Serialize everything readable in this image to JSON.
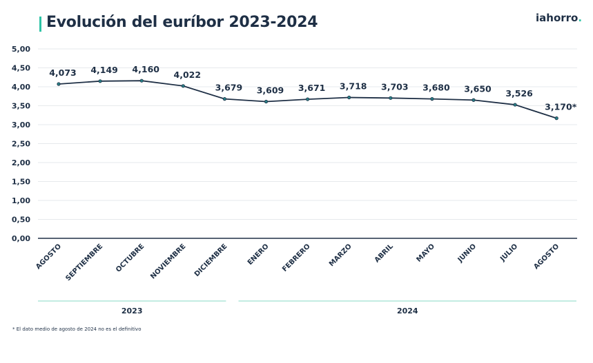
{
  "header": {
    "title": "Evolución del euríbor 2023-2024",
    "logo_main": "iahorro",
    "logo_dot": ".",
    "accent_color": "#2ec4a6",
    "text_color": "#1e2f45"
  },
  "footnote": "* El dato medio de agosto de 2024 no es el definitivo",
  "chart_data": {
    "type": "line",
    "title": "Evolución del euríbor 2023-2024",
    "xlabel": "",
    "ylabel": "",
    "categories": [
      "AGOSTO",
      "SEPTIEMBRE",
      "OCTUBRE",
      "NOVIEMBRE",
      "DICIEMBRE",
      "ENERO",
      "FEBRERO",
      "MARZO",
      "ABRIL",
      "MAYO",
      "JUNIO",
      "JULIO",
      "AGOSTO"
    ],
    "series": [
      {
        "values": [
          4.073,
          4.149,
          4.16,
          4.022,
          3.679,
          3.609,
          3.671,
          3.718,
          3.703,
          3.68,
          3.65,
          3.526,
          3.17
        ],
        "labels": [
          "4,073",
          "4,149",
          "4,160",
          "4,022",
          "3,679",
          "3,609",
          "3,671",
          "3,718",
          "3,703",
          "3,680",
          "3,650",
          "3,526",
          "3,170*"
        ],
        "color": "#1e2f45"
      }
    ],
    "ylim": [
      0,
      5
    ],
    "yticks": [
      "0,00",
      "0,50",
      "1,00",
      "1,50",
      "2,00",
      "2,50",
      "3,00",
      "3,50",
      "4,00",
      "4,50",
      "5,00"
    ],
    "grid": true,
    "groups": [
      {
        "label": "2023",
        "from": 0,
        "to": 4
      },
      {
        "label": "2024",
        "from": 5,
        "to": 12
      }
    ]
  }
}
